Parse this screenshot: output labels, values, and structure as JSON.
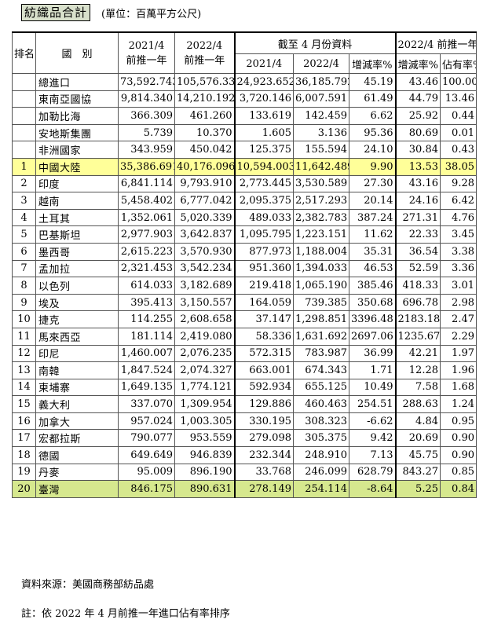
{
  "title": "紡織品合計",
  "unit": "(單位：百萬平方公尺)",
  "headers": {
    "rank": "排名",
    "country": "國　別",
    "col1_line1": "2021/4",
    "col1_line2": "前推一年",
    "col2_line1": "2022/4",
    "col2_line2": "前推一年",
    "ytd_group": "截至 4 月份資料",
    "ytd_2021": "2021/4",
    "ytd_2022": "2022/4",
    "ytd_change": "增減率%",
    "ttm_group": "2022/4 前推一年",
    "ttm_change": "增減率%",
    "ttm_share": "佔有率%"
  },
  "rows": [
    {
      "rank": "",
      "name": "總進口",
      "v1": "73,592.743",
      "v2": "105,576.330",
      "v3": "24,923.652",
      "v4": "36,185.792",
      "v5": "45.19",
      "v6": "43.46",
      "v7": "100.00"
    },
    {
      "rank": "",
      "name": "東南亞國協",
      "v1": "9,814.340",
      "v2": "14,210.192",
      "v3": "3,720.146",
      "v4": "6,007.591",
      "v5": "61.49",
      "v6": "44.79",
      "v7": "13.46"
    },
    {
      "rank": "",
      "name": "加勒比海",
      "v1": "366.309",
      "v2": "461.260",
      "v3": "133.619",
      "v4": "142.459",
      "v5": "6.62",
      "v6": "25.92",
      "v7": "0.44"
    },
    {
      "rank": "",
      "name": "安地斯集團",
      "v1": "5.739",
      "v2": "10.370",
      "v3": "1.605",
      "v4": "3.136",
      "v5": "95.36",
      "v6": "80.69",
      "v7": "0.01"
    },
    {
      "rank": "",
      "name": "非洲國家",
      "v1": "343.959",
      "v2": "450.042",
      "v3": "125.375",
      "v4": "155.594",
      "v5": "24.10",
      "v6": "30.84",
      "v7": "0.43"
    },
    {
      "rank": "1",
      "name": "中國大陸",
      "v1": "35,386.691",
      "v2": "40,176.096",
      "v3": "10,594.003",
      "v4": "11,642.489",
      "v5": "9.90",
      "v6": "13.53",
      "v7": "38.05"
    },
    {
      "rank": "2",
      "name": "印度",
      "v1": "6,841.114",
      "v2": "9,793.910",
      "v3": "2,773.445",
      "v4": "3,530.589",
      "v5": "27.30",
      "v6": "43.16",
      "v7": "9.28"
    },
    {
      "rank": "3",
      "name": "越南",
      "v1": "5,458.402",
      "v2": "6,777.042",
      "v3": "2,095.375",
      "v4": "2,517.293",
      "v5": "20.14",
      "v6": "24.16",
      "v7": "6.42"
    },
    {
      "rank": "4",
      "name": "土耳其",
      "v1": "1,352.061",
      "v2": "5,020.339",
      "v3": "489.033",
      "v4": "2,382.783",
      "v5": "387.24",
      "v6": "271.31",
      "v7": "4.76"
    },
    {
      "rank": "5",
      "name": "巴基斯坦",
      "v1": "2,977.903",
      "v2": "3,642.837",
      "v3": "1,095.795",
      "v4": "1,223.151",
      "v5": "11.62",
      "v6": "22.33",
      "v7": "3.45"
    },
    {
      "rank": "6",
      "name": "墨西哥",
      "v1": "2,615.223",
      "v2": "3,570.930",
      "v3": "877.973",
      "v4": "1,188.004",
      "v5": "35.31",
      "v6": "36.54",
      "v7": "3.38"
    },
    {
      "rank": "7",
      "name": "孟加拉",
      "v1": "2,321.453",
      "v2": "3,542.234",
      "v3": "951.360",
      "v4": "1,394.033",
      "v5": "46.53",
      "v6": "52.59",
      "v7": "3.36"
    },
    {
      "rank": "8",
      "name": "以色列",
      "v1": "614.033",
      "v2": "3,182.689",
      "v3": "219.418",
      "v4": "1,065.190",
      "v5": "385.46",
      "v6": "418.33",
      "v7": "3.01"
    },
    {
      "rank": "9",
      "name": "埃及",
      "v1": "395.413",
      "v2": "3,150.557",
      "v3": "164.059",
      "v4": "739.385",
      "v5": "350.68",
      "v6": "696.78",
      "v7": "2.98"
    },
    {
      "rank": "10",
      "name": "捷克",
      "v1": "114.255",
      "v2": "2,608.658",
      "v3": "37.147",
      "v4": "1,298.851",
      "v5": "3396.48",
      "v6": "2183.18",
      "v7": "2.47"
    },
    {
      "rank": "11",
      "name": "馬來西亞",
      "v1": "181.114",
      "v2": "2,419.080",
      "v3": "58.336",
      "v4": "1,631.692",
      "v5": "2697.06",
      "v6": "1235.67",
      "v7": "2.29"
    },
    {
      "rank": "12",
      "name": "印尼",
      "v1": "1,460.007",
      "v2": "2,076.235",
      "v3": "572.315",
      "v4": "783.987",
      "v5": "36.99",
      "v6": "42.21",
      "v7": "1.97"
    },
    {
      "rank": "13",
      "name": "南韓",
      "v1": "1,847.524",
      "v2": "2,074.327",
      "v3": "663.001",
      "v4": "674.343",
      "v5": "1.71",
      "v6": "12.28",
      "v7": "1.96"
    },
    {
      "rank": "14",
      "name": "柬埔寨",
      "v1": "1,649.135",
      "v2": "1,774.121",
      "v3": "592.934",
      "v4": "655.125",
      "v5": "10.49",
      "v6": "7.58",
      "v7": "1.68"
    },
    {
      "rank": "15",
      "name": "義大利",
      "v1": "337.070",
      "v2": "1,309.954",
      "v3": "129.886",
      "v4": "460.463",
      "v5": "254.51",
      "v6": "288.63",
      "v7": "1.24"
    },
    {
      "rank": "16",
      "name": "加拿大",
      "v1": "957.024",
      "v2": "1,003.305",
      "v3": "330.195",
      "v4": "308.323",
      "v5": "-6.62",
      "v6": "4.84",
      "v7": "0.95"
    },
    {
      "rank": "17",
      "name": "宏都拉斯",
      "v1": "790.077",
      "v2": "953.559",
      "v3": "279.098",
      "v4": "305.375",
      "v5": "9.42",
      "v6": "20.69",
      "v7": "0.90"
    },
    {
      "rank": "18",
      "name": "德國",
      "v1": "649.649",
      "v2": "946.839",
      "v3": "232.344",
      "v4": "248.910",
      "v5": "7.13",
      "v6": "45.75",
      "v7": "0.90"
    },
    {
      "rank": "19",
      "name": "丹麥",
      "v1": "95.009",
      "v2": "896.190",
      "v3": "33.768",
      "v4": "246.099",
      "v5": "628.79",
      "v6": "843.27",
      "v7": "0.85"
    },
    {
      "rank": "20",
      "name": "臺灣",
      "v1": "846.175",
      "v2": "890.631",
      "v3": "278.149",
      "v4": "254.114",
      "v5": "-8.64",
      "v6": "5.25",
      "v7": "0.84"
    }
  ],
  "highlight_colors": {
    "china": "#ffff99",
    "taiwan": "#d6e88e",
    "title_bg": "#d9e1cc"
  },
  "footnotes": {
    "source": "資料來源：美國商務部紡品處",
    "note": "註：依 2022 年 4 月前推一年進口佔有率排序"
  }
}
